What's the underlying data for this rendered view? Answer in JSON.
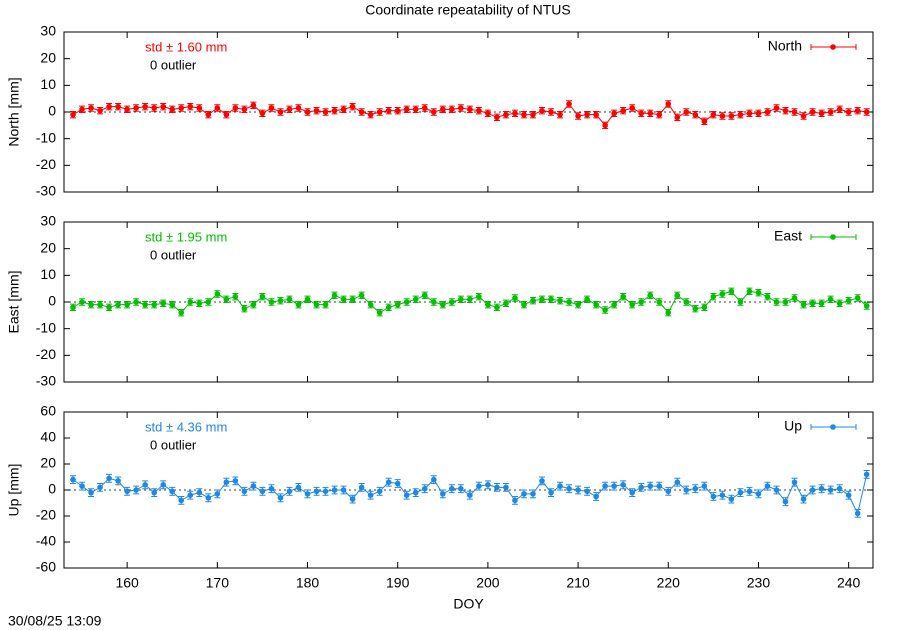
{
  "timestamp": "30/08/25 13:09",
  "chart_data": [
    {
      "type": "line",
      "title": "Coordinate repeatability of NTUS",
      "ylabel": "North [mm]",
      "annotations": [
        "std ± 1.60 mm",
        "0 outlier"
      ],
      "xlim": [
        153,
        242.7
      ],
      "xticks": [
        160,
        170,
        180,
        190,
        200,
        210,
        220,
        230,
        240
      ],
      "ylim": [
        -30,
        30
      ],
      "yticks": [
        -30,
        -20,
        -10,
        0,
        10,
        20,
        30
      ],
      "x": [
        154,
        155,
        156,
        157,
        158,
        159,
        160,
        161,
        162,
        163,
        164,
        165,
        166,
        167,
        168,
        169,
        170,
        171,
        172,
        173,
        174,
        175,
        176,
        177,
        178,
        179,
        180,
        181,
        182,
        183,
        184,
        185,
        186,
        187,
        188,
        189,
        190,
        191,
        192,
        193,
        194,
        195,
        196,
        197,
        198,
        199,
        200,
        201,
        202,
        203,
        204,
        205,
        206,
        207,
        208,
        209,
        210,
        211,
        212,
        213,
        214,
        215,
        216,
        217,
        218,
        219,
        220,
        221,
        222,
        223,
        224,
        225,
        226,
        227,
        228,
        229,
        230,
        231,
        232,
        233,
        234,
        235,
        236,
        237,
        238,
        239,
        240,
        241,
        242
      ],
      "series": [
        {
          "name": "North",
          "color": "#ff0000",
          "error": 1.2,
          "values": [
            -1,
            1,
            1.5,
            0.5,
            2,
            2,
            1,
            1.5,
            2,
            1.5,
            2,
            1,
            1.5,
            2,
            1.5,
            -1,
            1.5,
            -1,
            1.5,
            1,
            2.5,
            -0.5,
            1.5,
            0,
            1,
            1.5,
            0,
            0.5,
            0,
            0.5,
            1,
            2,
            0,
            -1,
            0,
            0.5,
            0.5,
            1,
            1,
            1.5,
            0,
            1,
            1,
            1.5,
            1,
            0.5,
            -0.5,
            -2,
            -1,
            -0.5,
            -1,
            -1,
            0.5,
            0,
            -1,
            3,
            -1.5,
            -1,
            -1,
            -5,
            -0.5,
            0.5,
            1.5,
            -0.5,
            -0.5,
            -1,
            3,
            -2,
            0,
            -1,
            -3.5,
            -1,
            -1.5,
            -1.5,
            -1,
            -0.5,
            -0.5,
            0,
            1.5,
            0.5,
            0,
            -1.5,
            0,
            -0.5,
            0,
            1,
            0,
            0.5,
            0
          ]
        }
      ]
    },
    {
      "type": "line",
      "ylabel": "East [mm]",
      "annotations": [
        "std ± 1.95 mm",
        "0 outlier"
      ],
      "xlim": [
        153,
        242.7
      ],
      "xticks": [
        160,
        170,
        180,
        190,
        200,
        210,
        220,
        230,
        240
      ],
      "ylim": [
        -30,
        30
      ],
      "yticks": [
        -30,
        -20,
        -10,
        0,
        10,
        20,
        30
      ],
      "x": [
        154,
        155,
        156,
        157,
        158,
        159,
        160,
        161,
        162,
        163,
        164,
        165,
        166,
        167,
        168,
        169,
        170,
        171,
        172,
        173,
        174,
        175,
        176,
        177,
        178,
        179,
        180,
        181,
        182,
        183,
        184,
        185,
        186,
        187,
        188,
        189,
        190,
        191,
        192,
        193,
        194,
        195,
        196,
        197,
        198,
        199,
        200,
        201,
        202,
        203,
        204,
        205,
        206,
        207,
        208,
        209,
        210,
        211,
        212,
        213,
        214,
        215,
        216,
        217,
        218,
        219,
        220,
        221,
        222,
        223,
        224,
        225,
        226,
        227,
        228,
        229,
        230,
        231,
        232,
        233,
        234,
        235,
        236,
        237,
        238,
        239,
        240,
        241,
        242
      ],
      "series": [
        {
          "name": "East",
          "color": "#00c000",
          "error": 1.2,
          "values": [
            -2,
            0,
            -1,
            -1,
            -2,
            -1,
            -1,
            0,
            -1,
            -1,
            -0.5,
            -1,
            -4,
            0,
            -0.5,
            0,
            3,
            1,
            2,
            -2.5,
            -1,
            2,
            0,
            0.5,
            1,
            -1,
            1,
            -1,
            -1,
            2.5,
            1,
            1,
            2.5,
            -1,
            -4,
            -2,
            -1,
            0,
            1,
            2.5,
            0,
            -1,
            0,
            1,
            1,
            2,
            -1,
            -2,
            -0.5,
            1.5,
            -1,
            0.5,
            1,
            1,
            0.5,
            0,
            -1,
            1,
            -1,
            -3,
            -1,
            2,
            -1,
            0,
            2.5,
            0,
            -4,
            2.5,
            0,
            -2.5,
            -2,
            2,
            3,
            4,
            0,
            4,
            3.5,
            2,
            0,
            0,
            1.5,
            -1,
            -0.5,
            -0.5,
            1,
            -0.5,
            0.5,
            1.5,
            -1.5
          ]
        }
      ]
    },
    {
      "type": "line",
      "ylabel": "Up [mm]",
      "xlabel": "DOY",
      "annotations": [
        "std ± 4.36 mm",
        "0 outlier"
      ],
      "xlim": [
        153,
        242.7
      ],
      "xticks": [
        160,
        170,
        180,
        190,
        200,
        210,
        220,
        230,
        240
      ],
      "ylim": [
        -60,
        60
      ],
      "yticks": [
        -60,
        -40,
        -20,
        0,
        20,
        40,
        60
      ],
      "x": [
        154,
        155,
        156,
        157,
        158,
        159,
        160,
        161,
        162,
        163,
        164,
        165,
        166,
        167,
        168,
        169,
        170,
        171,
        172,
        173,
        174,
        175,
        176,
        177,
        178,
        179,
        180,
        181,
        182,
        183,
        184,
        185,
        186,
        187,
        188,
        189,
        190,
        191,
        192,
        193,
        194,
        195,
        196,
        197,
        198,
        199,
        200,
        201,
        202,
        203,
        204,
        205,
        206,
        207,
        208,
        209,
        210,
        211,
        212,
        213,
        214,
        215,
        216,
        217,
        218,
        219,
        220,
        221,
        222,
        223,
        224,
        225,
        226,
        227,
        228,
        229,
        230,
        231,
        232,
        233,
        234,
        235,
        236,
        237,
        238,
        239,
        240,
        241,
        242
      ],
      "series": [
        {
          "name": "Up",
          "color": "#1e88e5",
          "error": 3,
          "values": [
            8,
            3,
            -2,
            2,
            9,
            7,
            -1,
            0,
            4,
            -2,
            4,
            -1,
            -8,
            -4,
            -2,
            -6,
            -3,
            6,
            7,
            -1,
            3,
            -1,
            1,
            -6,
            -1,
            2,
            -3,
            -1,
            -1,
            0,
            0,
            -7,
            2,
            -4,
            -1,
            6,
            5,
            -4,
            -2,
            1,
            8,
            -3,
            1,
            1,
            -4,
            3,
            4,
            2,
            2,
            -8,
            -3,
            -3,
            7,
            -2,
            3,
            1,
            0,
            -1,
            -5,
            3,
            3,
            4,
            -2,
            2,
            3,
            3,
            -1,
            6,
            0,
            1,
            3,
            -5,
            -4,
            -7,
            -2,
            -1,
            -3,
            3,
            0,
            -9,
            6,
            -7,
            0,
            1,
            0,
            1,
            -4,
            -18,
            12
          ]
        }
      ]
    }
  ]
}
